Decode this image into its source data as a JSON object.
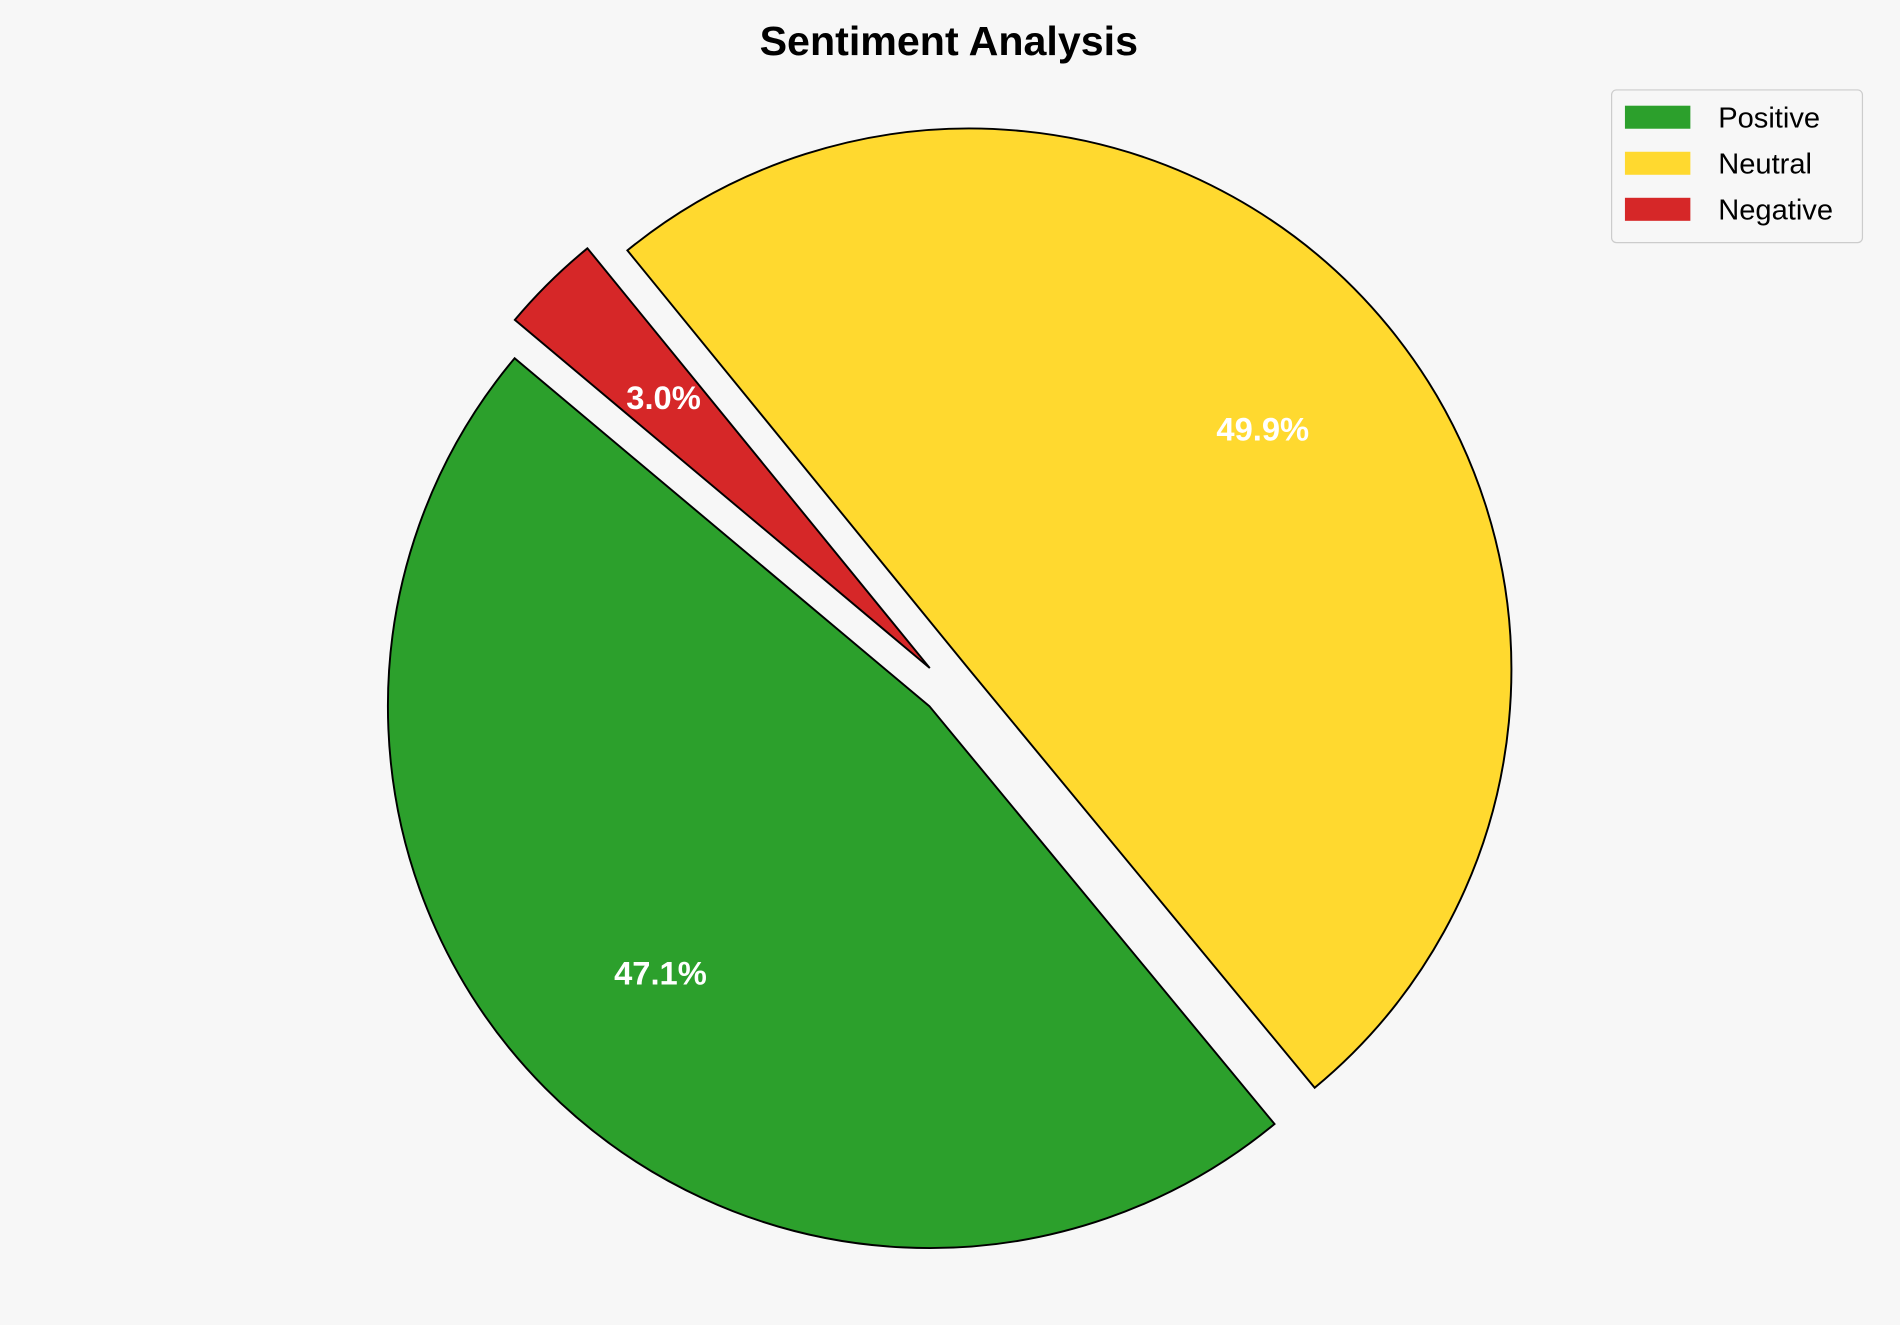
{
  "chart_data": {
    "type": "pie",
    "title": "Sentiment Analysis",
    "labels": [
      "Positive",
      "Neutral",
      "Negative"
    ],
    "values": [
      47.1,
      49.9,
      3.0
    ],
    "pct_labels": [
      "47.1%",
      "49.9%",
      "3.0%"
    ],
    "colors": [
      "#2ca02c",
      "#ffd92f",
      "#d62728"
    ],
    "start_angle_deg": 140,
    "direction": "counterclockwise",
    "explode": [
      0.05,
      0.05,
      0.05
    ],
    "legend_placement": "top-right"
  }
}
